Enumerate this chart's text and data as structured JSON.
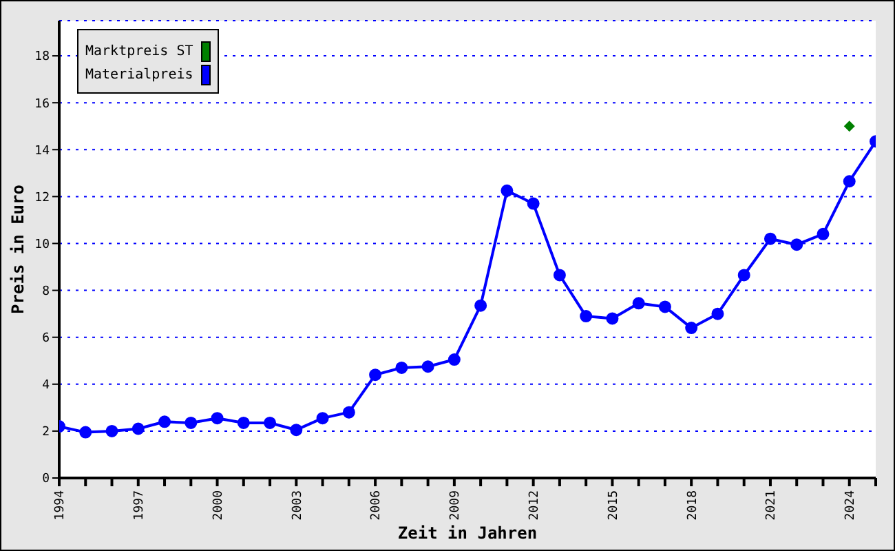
{
  "chart_data": {
    "type": "line",
    "xlabel": "Zeit in Jahren",
    "ylabel": "Preis in Euro",
    "xlim": [
      1994,
      2025
    ],
    "xticks": [
      1994,
      {
        "value": 1995,
        "label": null
      },
      {
        "value": 1996,
        "label": null
      },
      1997,
      {
        "value": 1998,
        "label": null
      },
      {
        "value": 1999,
        "label": null
      },
      2000,
      {
        "value": 2001,
        "label": null
      },
      {
        "value": 2002,
        "label": null
      },
      2003,
      {
        "value": 2004,
        "label": null
      },
      {
        "value": 2005,
        "label": null
      },
      2006,
      {
        "value": 2007,
        "label": null
      },
      {
        "value": 2008,
        "label": null
      },
      2009,
      {
        "value": 2010,
        "label": null
      },
      {
        "value": 2011,
        "label": null
      },
      2012,
      {
        "value": 2013,
        "label": null
      },
      {
        "value": 2014,
        "label": null
      },
      2015,
      {
        "value": 2016,
        "label": null
      },
      {
        "value": 2017,
        "label": null
      },
      2018,
      {
        "value": 2019,
        "label": null
      },
      {
        "value": 2020,
        "label": null
      },
      2021,
      {
        "value": 2022,
        "label": null
      },
      {
        "value": 2023,
        "label": null
      },
      2024,
      {
        "value": 2025,
        "label": null
      }
    ],
    "ylim": [
      0,
      19.5
    ],
    "yticks": [
      0,
      2,
      4,
      6,
      8,
      10,
      12,
      14,
      16,
      18
    ],
    "grid": "y",
    "legend": "top left",
    "series": [
      {
        "name": "Marktpreis ST",
        "type": "scatter",
        "color": "#008000",
        "marker": "diamond",
        "x": [
          2024
        ],
        "values": [
          15.0
        ]
      },
      {
        "name": "Materialpreis",
        "color": "#0000ff",
        "marker": "circle",
        "x": [
          1994,
          1995,
          1996,
          1997,
          1998,
          1999,
          2000,
          2001,
          2002,
          2003,
          2004,
          2005,
          2006,
          2007,
          2008,
          2009,
          2010,
          2011,
          2012,
          2013,
          2014,
          2015,
          2016,
          2017,
          2018,
          2019,
          2020,
          2021,
          2022,
          2023,
          2024,
          2025
        ],
        "values": [
          2.2,
          1.95,
          2.0,
          2.1,
          2.4,
          2.35,
          2.55,
          2.35,
          2.35,
          2.05,
          2.55,
          2.8,
          4.4,
          4.7,
          4.75,
          5.05,
          7.35,
          12.25,
          11.7,
          8.65,
          6.9,
          6.8,
          7.45,
          7.3,
          6.4,
          7.0,
          8.65,
          10.2,
          9.95,
          10.4,
          12.65,
          14.35
        ]
      }
    ]
  }
}
